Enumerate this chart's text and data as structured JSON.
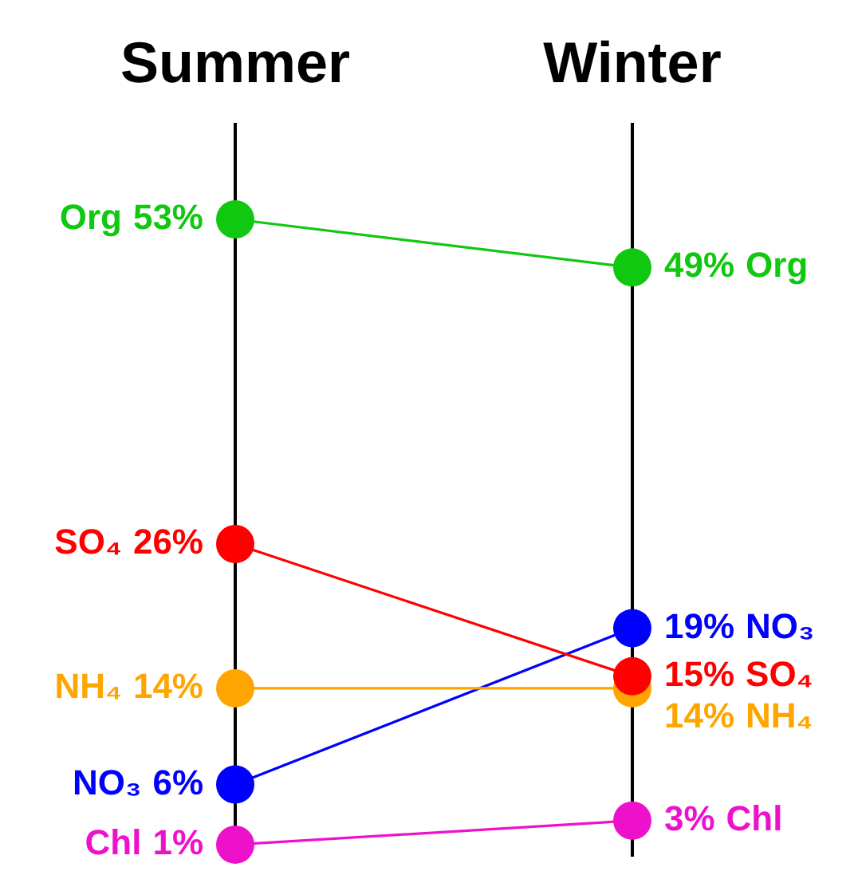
{
  "chart_data": {
    "type": "line",
    "categories": [
      "Summer",
      "Winter"
    ],
    "ylim": [
      0,
      61
    ],
    "grid": "x",
    "legend": false,
    "tick_labels": "x",
    "marker": "circle",
    "line_style": "solid",
    "series": [
      {
        "name": "Org",
        "color": "#11c811",
        "values": [
          53,
          49
        ],
        "value_labels": [
          "53%",
          "49%"
        ]
      },
      {
        "name": "SO₄",
        "color": "#ff0000",
        "values": [
          26,
          15
        ],
        "value_labels": [
          "26%",
          "15%"
        ]
      },
      {
        "name": "NH₄",
        "color": "#ffa500",
        "values": [
          14,
          14
        ],
        "value_labels": [
          "14%",
          "14%"
        ]
      },
      {
        "name": "NO₃",
        "color": "#0000ff",
        "values": [
          6,
          19
        ],
        "value_labels": [
          "6%",
          "19%"
        ]
      },
      {
        "name": "Chl",
        "color": "#ee11cc",
        "values": [
          1,
          3
        ],
        "value_labels": [
          "1%",
          "3%"
        ]
      }
    ]
  }
}
